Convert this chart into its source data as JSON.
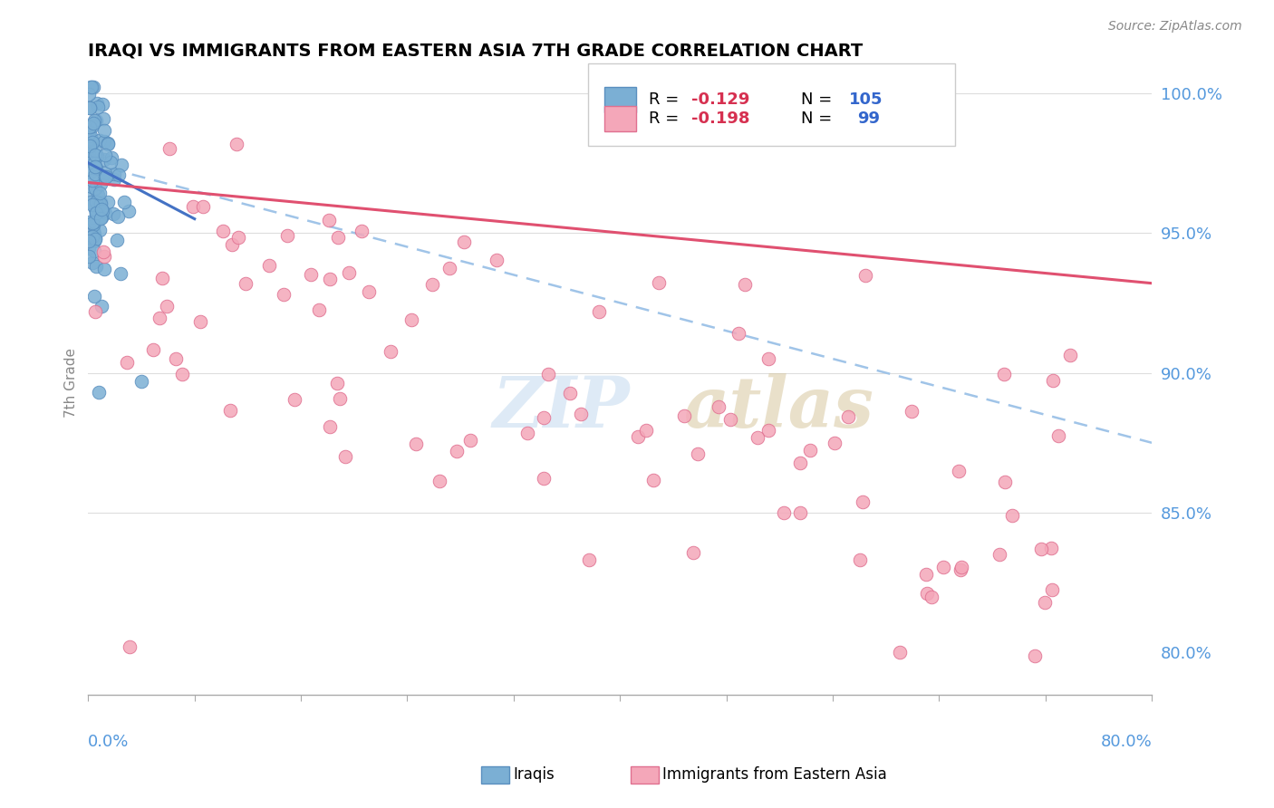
{
  "title": "IRAQI VS IMMIGRANTS FROM EASTERN ASIA 7TH GRADE CORRELATION CHART",
  "source": "Source: ZipAtlas.com",
  "ylabel": "7th Grade",
  "ylabel_ticks": [
    "80.0%",
    "85.0%",
    "90.0%",
    "95.0%",
    "100.0%"
  ],
  "ylabel_tick_vals": [
    0.8,
    0.85,
    0.9,
    0.95,
    1.0
  ],
  "xmin": 0.0,
  "xmax": 0.8,
  "ymin": 0.785,
  "ymax": 1.008,
  "legend_blue_R": -0.129,
  "legend_blue_N": 105,
  "legend_pink_R": -0.198,
  "legend_pink_N": 99,
  "blue_color": "#7bafd4",
  "pink_color": "#f4a7b9",
  "blue_edge": "#5a8fbf",
  "pink_edge": "#e07090",
  "trend_blue_solid_color": "#4472c4",
  "trend_blue_dash_color": "#a0c4e8",
  "trend_pink_color": "#e05070",
  "watermark_zip": "ZIP",
  "watermark_atlas": "atlas",
  "watermark_color_zip": "#c8d8f0",
  "watermark_color_atlas": "#d0c8b0"
}
